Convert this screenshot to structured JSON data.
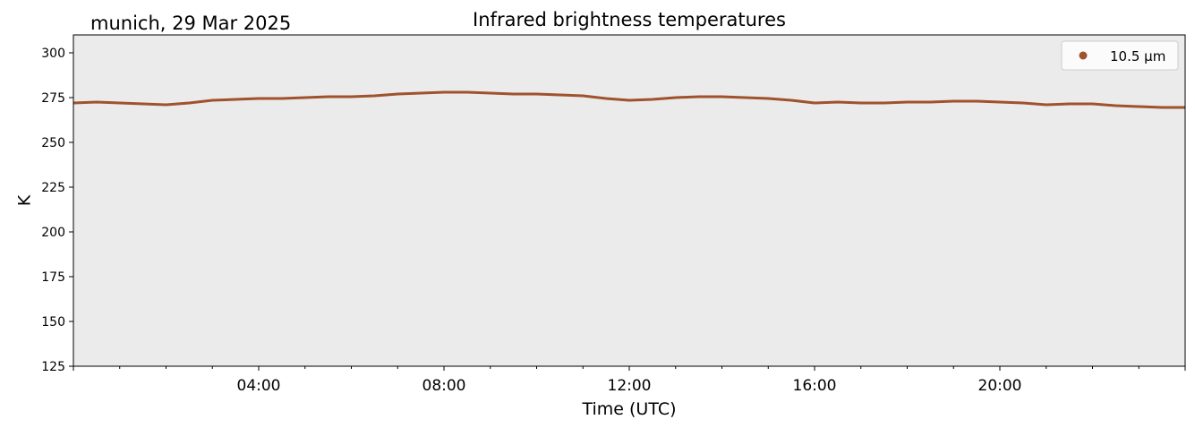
{
  "chart_data": {
    "type": "line",
    "title": "Infrared brightness temperatures",
    "subtitle": "munich, 29 Mar 2025",
    "xlabel": "Time (UTC)",
    "ylabel": "K",
    "xlim_hours": [
      0,
      24
    ],
    "ylim": [
      125,
      310
    ],
    "xticks": [
      {
        "hour": 4,
        "label": "04:00"
      },
      {
        "hour": 8,
        "label": "08:00"
      },
      {
        "hour": 12,
        "label": "12:00"
      },
      {
        "hour": 16,
        "label": "16:00"
      },
      {
        "hour": 20,
        "label": "20:00"
      }
    ],
    "yticks": [
      125,
      150,
      175,
      200,
      225,
      250,
      275,
      300
    ],
    "grid": false,
    "legend_position": "top-right",
    "plot_background": "#ebebeb",
    "series": [
      {
        "name": "10.5 µm",
        "color": "#a0522d",
        "x_hours": [
          0,
          0.5,
          1,
          1.5,
          2,
          2.5,
          3,
          3.5,
          4,
          4.5,
          5,
          5.5,
          6,
          6.5,
          7,
          7.5,
          8,
          8.5,
          9,
          9.5,
          10,
          10.5,
          11,
          11.5,
          12,
          12.5,
          13,
          13.5,
          14,
          14.5,
          15,
          15.5,
          16,
          16.5,
          17,
          17.5,
          18,
          18.5,
          19,
          19.5,
          20,
          20.5,
          21,
          21.5,
          22,
          22.5,
          23,
          23.5,
          24
        ],
        "values": [
          272,
          272.5,
          272,
          271.5,
          271,
          272,
          273.5,
          274,
          274.5,
          274.5,
          275,
          275.5,
          275.5,
          276,
          277,
          277.5,
          278,
          278,
          277.5,
          277,
          277,
          276.5,
          276,
          274.5,
          273.5,
          274,
          275,
          275.5,
          275.5,
          275,
          274.5,
          273.5,
          272,
          272.5,
          272,
          272,
          272.5,
          272.5,
          273,
          273,
          272.5,
          272,
          271,
          271.5,
          271.5,
          270.5,
          270,
          269.5,
          269.5
        ]
      }
    ]
  }
}
